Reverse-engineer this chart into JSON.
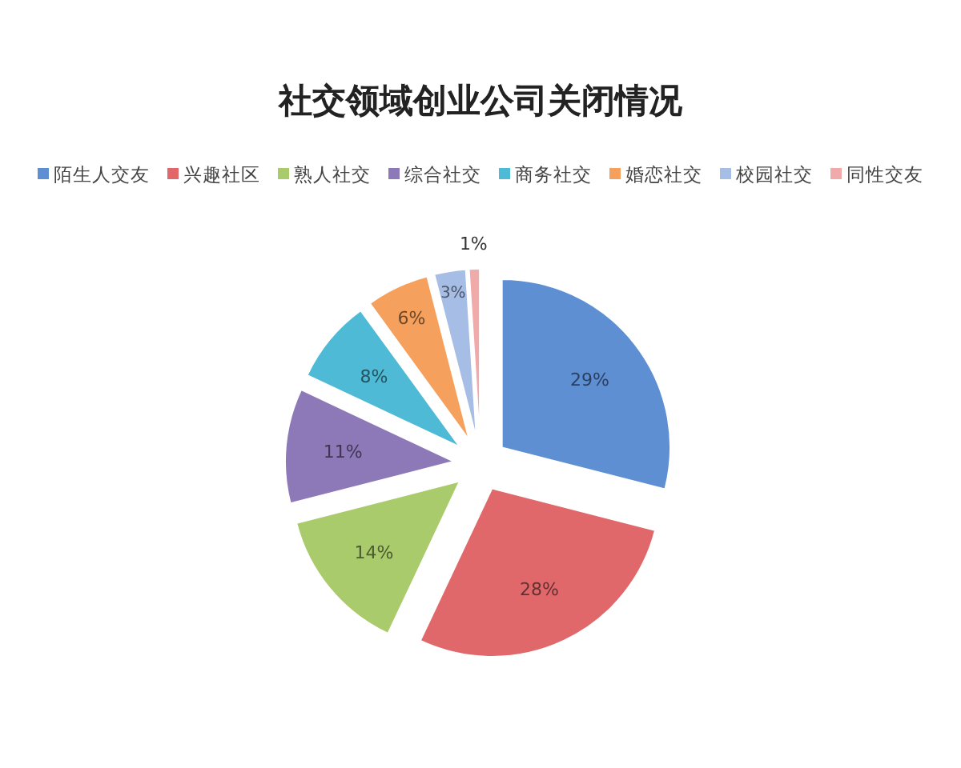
{
  "chart_data": {
    "type": "pie",
    "title": "社交领域创业公司关闭情况",
    "categories": [
      "陌生人交友",
      "兴趣社区",
      "熟人社交",
      "综合社交",
      "商务社交",
      "婚恋社交",
      "校园社交",
      "同性交友"
    ],
    "values": [
      29,
      28,
      14,
      11,
      8,
      6,
      3,
      1
    ],
    "colors": [
      "#5f8fd3",
      "#e0686a",
      "#a9cb6c",
      "#8e79b8",
      "#4fbad6",
      "#f5a05c",
      "#a6bde6",
      "#f1aaaa"
    ],
    "value_labels": [
      "29%",
      "28%",
      "14%",
      "11%",
      "8%",
      "6%",
      "3%",
      "1%"
    ],
    "legend": "top"
  }
}
